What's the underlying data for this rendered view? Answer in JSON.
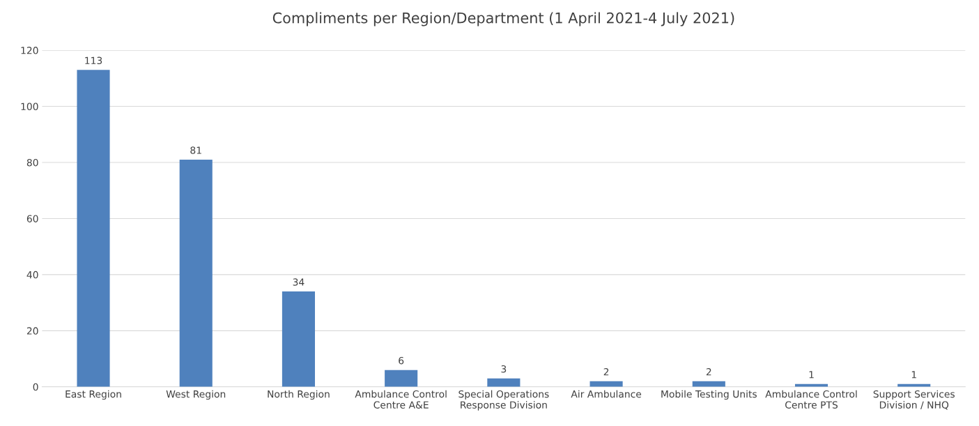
{
  "chart_data": {
    "type": "bar",
    "title": "Compliments per Region/Department (1 April 2021-4 July 2021)",
    "categories": [
      "East Region",
      "West Region",
      "North Region",
      "Ambulance Control\nCentre A&E",
      "Special Operations\nResponse Division",
      "Air Ambulance",
      "Mobile Testing Units",
      "Ambulance Control\nCentre PTS",
      "Support Services\nDivision / NHQ"
    ],
    "values": [
      113,
      81,
      34,
      6,
      3,
      2,
      2,
      1,
      1
    ],
    "color": "#4f81bd",
    "ylim": [
      0,
      120
    ],
    "yticks": [
      0,
      20,
      40,
      60,
      80,
      100,
      120
    ],
    "grid": "y",
    "data_labels": true
  }
}
